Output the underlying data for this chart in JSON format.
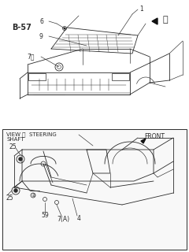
{
  "bg_color": "#ffffff",
  "fig_width": 2.4,
  "fig_height": 3.2,
  "dpi": 100,
  "color": "#2a2a2a",
  "label_B57": "B-57",
  "label_1": "1",
  "label_6": "6",
  "label_9": "9",
  "label_7B": "7Ⓑ",
  "label_circA_top": "Ⓐ",
  "label_VIEW": "VIEW Ⓐ  STEERING",
  "label_SHAFT": "SHAFT",
  "label_FRONT": "FRONT",
  "label_25a": "25",
  "label_25b": "25",
  "label_59": "59",
  "label_7A": "7(A)",
  "label_4": "4",
  "label_2": "②"
}
